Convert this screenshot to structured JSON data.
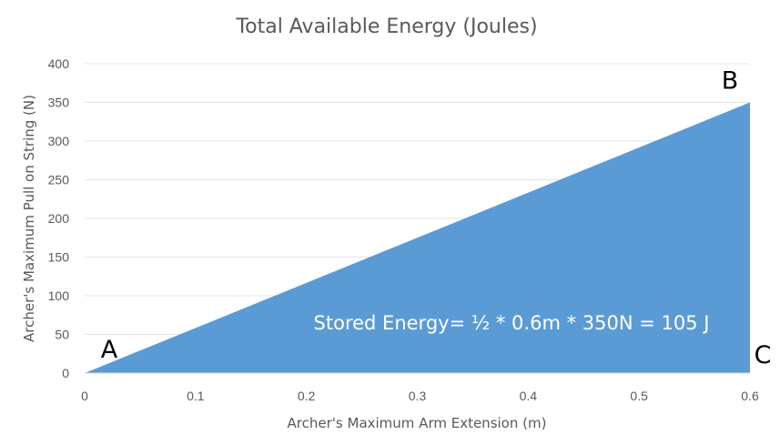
{
  "chart_data": {
    "type": "area",
    "title": "Total Available Energy (Joules)",
    "xlabel": "Archer's Maximum Arm Extension (m)",
    "ylabel": "Archer's Maximum Pull on String (N)",
    "x": [
      0,
      0.6
    ],
    "y": [
      0,
      350
    ],
    "xlim": [
      0,
      0.6
    ],
    "ylim": [
      0,
      400
    ],
    "xticks": [
      0,
      0.1,
      0.2,
      0.3,
      0.4,
      0.5,
      0.6
    ],
    "xtick_labels": [
      "0",
      "0.1",
      "0.2",
      "0.3",
      "0.4",
      "0.5",
      "0.6"
    ],
    "yticks": [
      0,
      50,
      100,
      150,
      200,
      250,
      300,
      350,
      400
    ],
    "ytick_labels": [
      "0",
      "50",
      "100",
      "150",
      "200",
      "250",
      "300",
      "350",
      "400"
    ],
    "grid": true,
    "fill_color": "#5b9bd5",
    "point_labels": [
      {
        "text": "A",
        "x": 0,
        "y": 0
      },
      {
        "text": "B",
        "x": 0.6,
        "y": 350
      },
      {
        "text": "C",
        "x": 0.6,
        "y": 0
      }
    ],
    "annotation": "Stored Energy= ½ * 0.6m * 350N = 105 J"
  }
}
